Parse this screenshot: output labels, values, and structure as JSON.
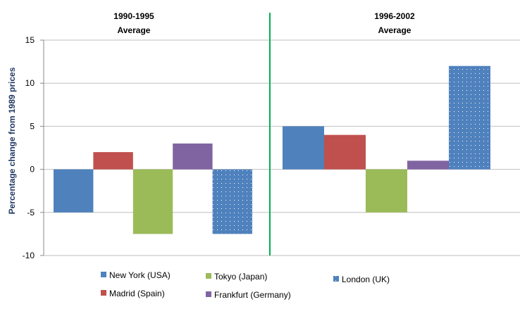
{
  "chart_data": {
    "type": "bar",
    "title": "",
    "xlabel": "",
    "ylabel": "Percentage change from 1989 prices",
    "ylim": [
      -10,
      15
    ],
    "yticks": [
      15,
      10,
      5,
      0,
      -5,
      -10
    ],
    "grid": true,
    "legend_position": "bottom",
    "categories": [
      "1990-1995 Average",
      "1996-2002 Average"
    ],
    "category_lines": [
      [
        "1990-1995",
        "Average"
      ],
      [
        "1996-2002",
        "Average"
      ]
    ],
    "series": [
      {
        "name": "New York (USA)",
        "values": [
          -5,
          5
        ],
        "color": "#4f81bd",
        "pattern": "solid"
      },
      {
        "name": "Madrid (Spain)",
        "values": [
          2,
          4
        ],
        "color": "#c0504d",
        "pattern": "solid"
      },
      {
        "name": "Tokyo  (Japan)",
        "values": [
          -7.5,
          -5
        ],
        "color": "#9bbb59",
        "pattern": "solid"
      },
      {
        "name": "Frankfurt (Germany)",
        "values": [
          3,
          1
        ],
        "color": "#8064a2",
        "pattern": "solid"
      },
      {
        "name": "London (UK)",
        "values": [
          -7.5,
          12
        ],
        "color": "#4f81bd",
        "pattern": "dotted"
      }
    ],
    "divider_color": "#00b050"
  }
}
